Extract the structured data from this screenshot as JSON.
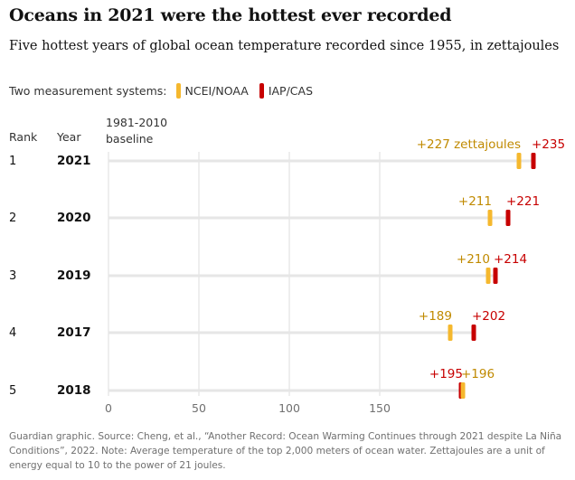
{
  "title": "Oceans in 2021 were the hottest ever recorded",
  "subtitle": "Five hottest years of global ocean temperature recorded since 1955, in zettajoules",
  "legend": {
    "label": "Two measurement systems:",
    "items": [
      {
        "name": "NCEI/NOAA",
        "color": "#f5b82e"
      },
      {
        "name": "IAP/CAS",
        "color": "#c70000"
      }
    ]
  },
  "columns": {
    "rank": "Rank",
    "year": "Year",
    "baseline": [
      "1981-2010",
      "baseline"
    ]
  },
  "chart_data": {
    "type": "dot-range",
    "x_ticks": [
      0,
      50,
      100,
      150
    ],
    "xlim": [
      0,
      250
    ],
    "grid": true,
    "rows": [
      {
        "rank": "1",
        "year": "2021",
        "ncei": 227,
        "iap": 235,
        "ncei_label": "+227 zettajoules",
        "iap_label": "+235"
      },
      {
        "rank": "2",
        "year": "2020",
        "ncei": 211,
        "iap": 221,
        "ncei_label": "+211",
        "iap_label": "+221"
      },
      {
        "rank": "3",
        "year": "2019",
        "ncei": 210,
        "iap": 214,
        "ncei_label": "+210",
        "iap_label": "+214"
      },
      {
        "rank": "4",
        "year": "2017",
        "ncei": 189,
        "iap": 202,
        "ncei_label": "+189",
        "iap_label": "+202"
      },
      {
        "rank": "5",
        "year": "2018",
        "ncei": 196,
        "iap": 195,
        "ncei_label": "+196",
        "iap_label": "+195"
      }
    ]
  },
  "source": "Guardian graphic. Source: Cheng, et al., “Another Record: Ocean Warming Continues through 2021 despite La Niña Conditions”, 2022. Note: Average temperature of the top 2,000 meters of ocean water. Zettajoules are a unit of energy equal to 10 to the power of 21 joules."
}
